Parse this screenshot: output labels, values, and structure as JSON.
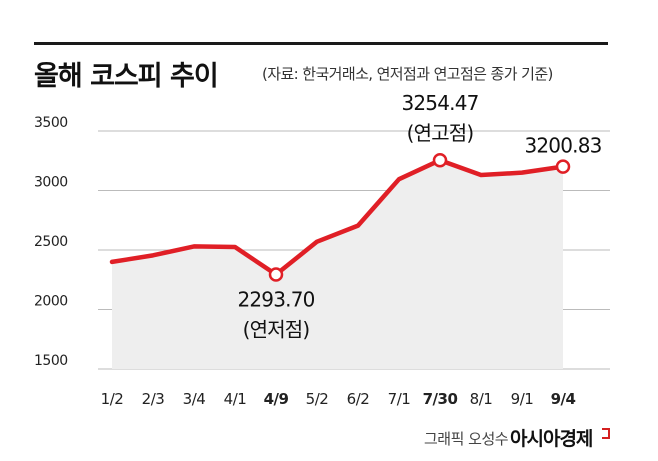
{
  "title": "올해 코스피 추이",
  "subtitle": "(자료: 한국거래소, 연저점과 연고점은 종가 기준)",
  "credit": "그래픽 오성수",
  "brand": "아시아경제",
  "colors": {
    "line": "#e01f26",
    "area": "#eeeeee",
    "grid": "#bbbbbb",
    "marker_fill": "#ffffff",
    "text": "#222222"
  },
  "chart_data": {
    "type": "line",
    "categories": [
      "1/2",
      "2/3",
      "3/4",
      "4/1",
      "4/9",
      "5/2",
      "6/2",
      "7/1",
      "7/30",
      "8/1",
      "9/1",
      "9/4"
    ],
    "highlight_categories": [
      "4/9",
      "7/30",
      "9/4"
    ],
    "values": [
      2400,
      2455,
      2530,
      2525,
      2293.7,
      2570,
      2705,
      3095,
      3254.47,
      3130,
      3150,
      3200.83
    ],
    "ylim": [
      1500,
      3500
    ],
    "yticks": [
      1500,
      2000,
      2500,
      3000,
      3500
    ],
    "grid": true,
    "annotations": [
      {
        "index": 4,
        "value": "2293.70",
        "label": "(연저점)"
      },
      {
        "index": 8,
        "value": "3254.47",
        "label": "(연고점)"
      },
      {
        "index": 11,
        "value": "3200.83",
        "label": ""
      }
    ]
  }
}
